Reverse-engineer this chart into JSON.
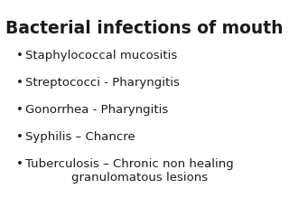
{
  "title": "Bacterial infections of mouth",
  "title_fontsize": 13.5,
  "title_fontweight": "bold",
  "title_color": "#1a1a1a",
  "background_color": "#ffffff",
  "bullet_char": "•",
  "bullet_items": [
    "Staphylococcal mucositis",
    "Streptococci - Pharyngitis",
    "Gonorrhea - Pharyngitis",
    "Syphilis – Chancre",
    "Tuberculosis – Chronic non healing\n            granulomatous lesions"
  ],
  "item_fontsize": 9.5,
  "item_color": "#1a1a1a",
  "item_fontfamily": "DejaVu Sans"
}
